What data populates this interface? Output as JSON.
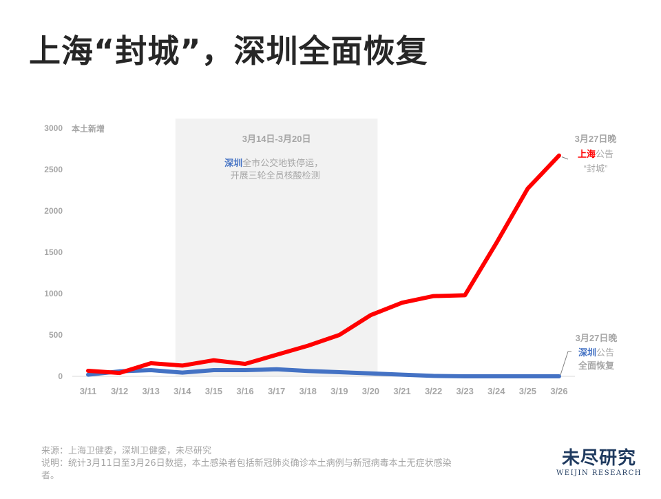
{
  "title": "上海“封城”，深圳全面恢复",
  "chart_data": {
    "type": "line",
    "title": "上海“封城”，深圳全面恢复",
    "ylabel": "本土新增",
    "xlabel": "",
    "ylim": [
      0,
      3000
    ],
    "yticks": [
      0,
      500,
      1000,
      1500,
      2000,
      2500,
      3000
    ],
    "grid": false,
    "categories": [
      "3/11",
      "3/12",
      "3/13",
      "3/14",
      "3/15",
      "3/16",
      "3/17",
      "3/18",
      "3/19",
      "3/20",
      "3/21",
      "3/22",
      "3/23",
      "3/24",
      "3/25",
      "3/26"
    ],
    "series": [
      {
        "name": "上海",
        "color": "#ff0000",
        "values": [
          67,
          41,
          158,
          130,
          194,
          150,
          260,
          370,
          500,
          740,
          890,
          970,
          980,
          1610,
          2270,
          2670
        ]
      },
      {
        "name": "深圳",
        "color": "#4472c4",
        "values": [
          20,
          60,
          75,
          45,
          75,
          75,
          85,
          65,
          50,
          35,
          20,
          5,
          0,
          0,
          0,
          0
        ]
      }
    ],
    "shaded_region": {
      "from": "3/14",
      "to": "3/20",
      "color": "#f2f2f2"
    },
    "annotations": [
      {
        "target": "shaded_region",
        "heading": "3月14日-3月20日",
        "city": "深圳",
        "line1_rest": "全市公交地铁停运，",
        "line2": "开展三轮全员核酸检测"
      },
      {
        "target": "上海",
        "heading": "3月27日晚",
        "city": "上海",
        "line1_rest": "公告",
        "line2": "“封城”"
      },
      {
        "target": "深圳",
        "heading": "3月27日晚",
        "city": "深圳",
        "line1_rest": "公告",
        "line2": "全面恢复"
      }
    ]
  },
  "colors": {
    "shanghai": "#ff0000",
    "shenzhen": "#4472c4",
    "axis_text": "#a6a6a6",
    "shade": "#f2f2f2",
    "title": "#262626",
    "logo": "#1f3a5f"
  },
  "footer": {
    "source": "来源：上海卫健委，深圳卫健委，未尽研究",
    "note": "说明：统计3月11日至3月26日数据，本土感染者包括新冠肺炎确诊本土病例与新冠病毒本土无症状感染者。"
  },
  "logo": {
    "cn": "未尽研究",
    "en": "WEIJIN RESEARCH"
  }
}
